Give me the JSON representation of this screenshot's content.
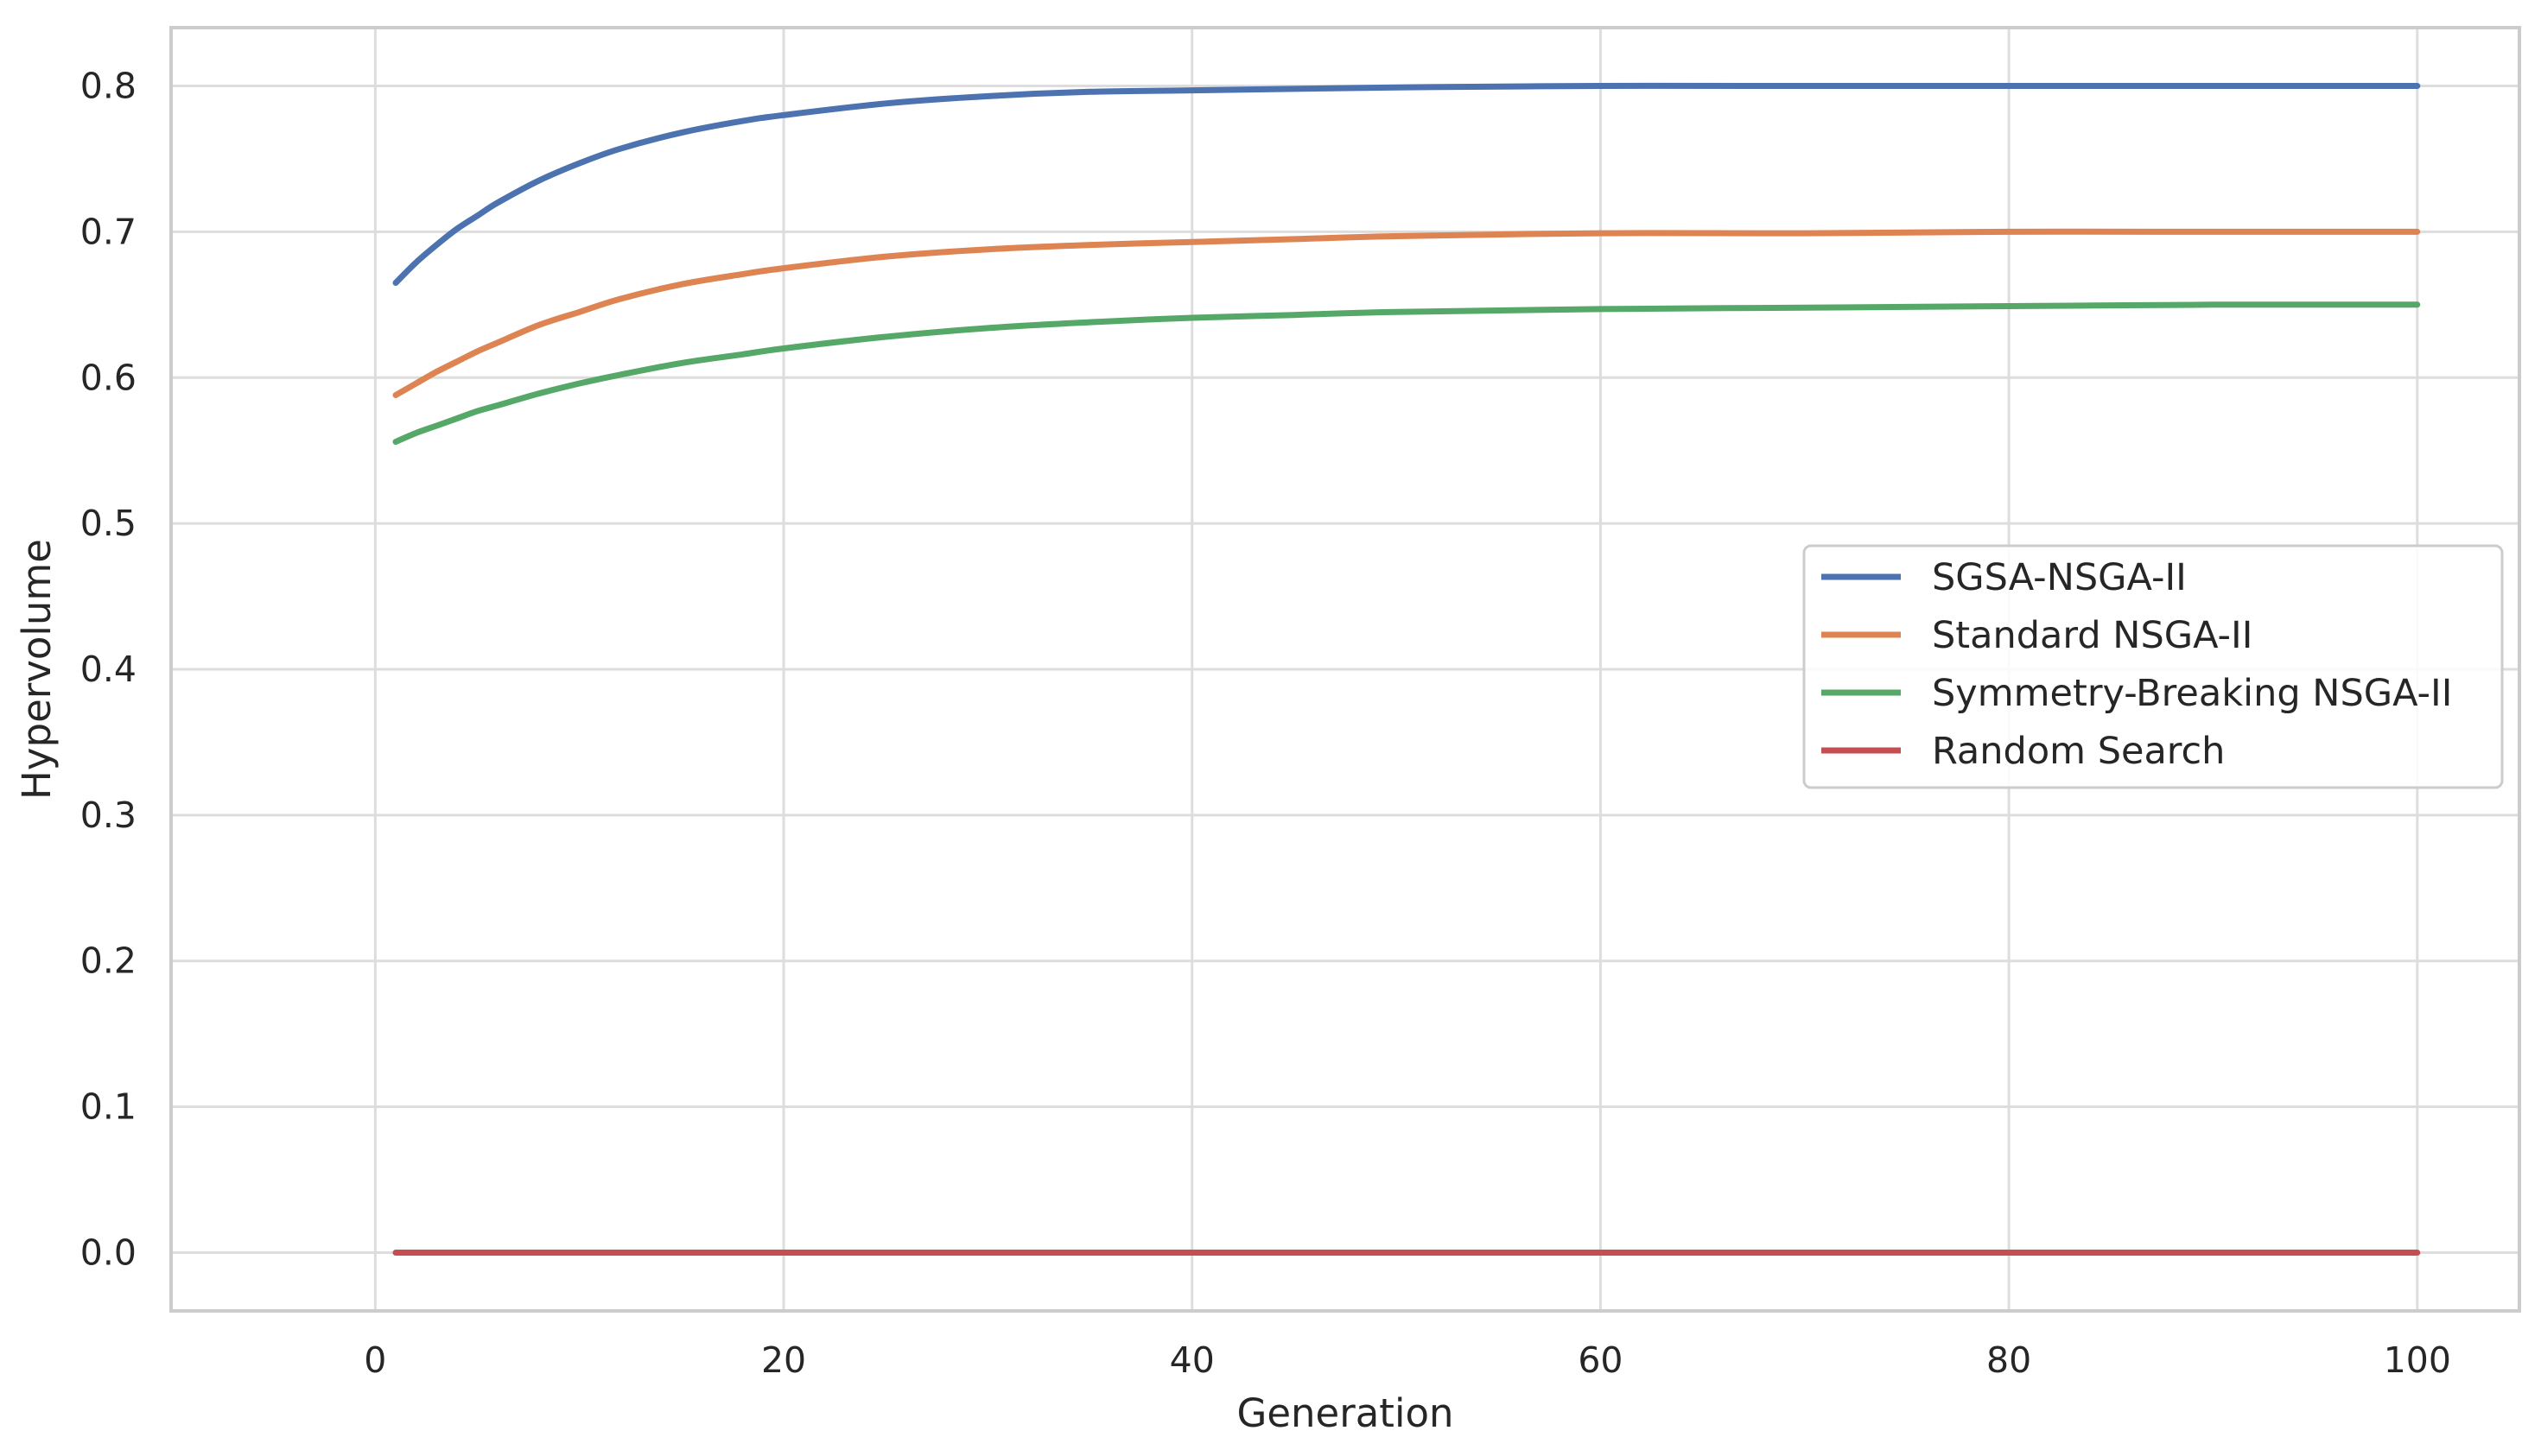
{
  "chart_data": {
    "type": "line",
    "title": "",
    "xlabel": "Generation",
    "ylabel": "Hypervolume",
    "xlim": [
      -10,
      105
    ],
    "ylim": [
      -0.04,
      0.84
    ],
    "xticks": [
      0,
      20,
      40,
      60,
      80,
      100
    ],
    "yticks": [
      0.0,
      0.1,
      0.2,
      0.3,
      0.4,
      0.5,
      0.6,
      0.7,
      0.8
    ],
    "xtick_labels": [
      "0",
      "20",
      "40",
      "60",
      "80",
      "100"
    ],
    "ytick_labels": [
      "0.0",
      "0.1",
      "0.2",
      "0.3",
      "0.4",
      "0.5",
      "0.6",
      "0.7",
      "0.8"
    ],
    "grid": true,
    "legend_position": "center-right",
    "x": [
      1,
      2,
      3,
      4,
      5,
      6,
      8,
      10,
      12,
      15,
      18,
      20,
      25,
      30,
      35,
      40,
      45,
      50,
      60,
      70,
      80,
      90,
      100
    ],
    "series": [
      {
        "name": "SGSA-NSGA-II",
        "color": "#4c72b0",
        "values": [
          0.665,
          0.679,
          0.691,
          0.702,
          0.711,
          0.72,
          0.735,
          0.747,
          0.757,
          0.768,
          0.776,
          0.78,
          0.788,
          0.793,
          0.796,
          0.797,
          0.798,
          0.799,
          0.8,
          0.8,
          0.8,
          0.8,
          0.8
        ]
      },
      {
        "name": "Standard NSGA-II",
        "color": "#dd8452",
        "values": [
          0.588,
          0.596,
          0.604,
          0.611,
          0.618,
          0.624,
          0.636,
          0.645,
          0.654,
          0.664,
          0.671,
          0.675,
          0.683,
          0.688,
          0.691,
          0.693,
          0.695,
          0.697,
          0.699,
          0.699,
          0.7,
          0.7,
          0.7
        ]
      },
      {
        "name": "Symmetry-Breaking NSGA-II",
        "color": "#55a868",
        "values": [
          0.556,
          0.562,
          0.567,
          0.572,
          0.577,
          0.581,
          0.589,
          0.596,
          0.602,
          0.61,
          0.616,
          0.62,
          0.628,
          0.634,
          0.638,
          0.641,
          0.643,
          0.645,
          0.647,
          0.648,
          0.649,
          0.65,
          0.65
        ]
      },
      {
        "name": "Random Search",
        "color": "#c44e52",
        "values": [
          0.0,
          0.0,
          0.0,
          0.0,
          0.0,
          0.0,
          0.0,
          0.0,
          0.0,
          0.0,
          0.0,
          0.0,
          0.0,
          0.0,
          0.0,
          0.0,
          0.0,
          0.0,
          0.0,
          0.0,
          0.0,
          0.0,
          0.0
        ]
      }
    ]
  }
}
